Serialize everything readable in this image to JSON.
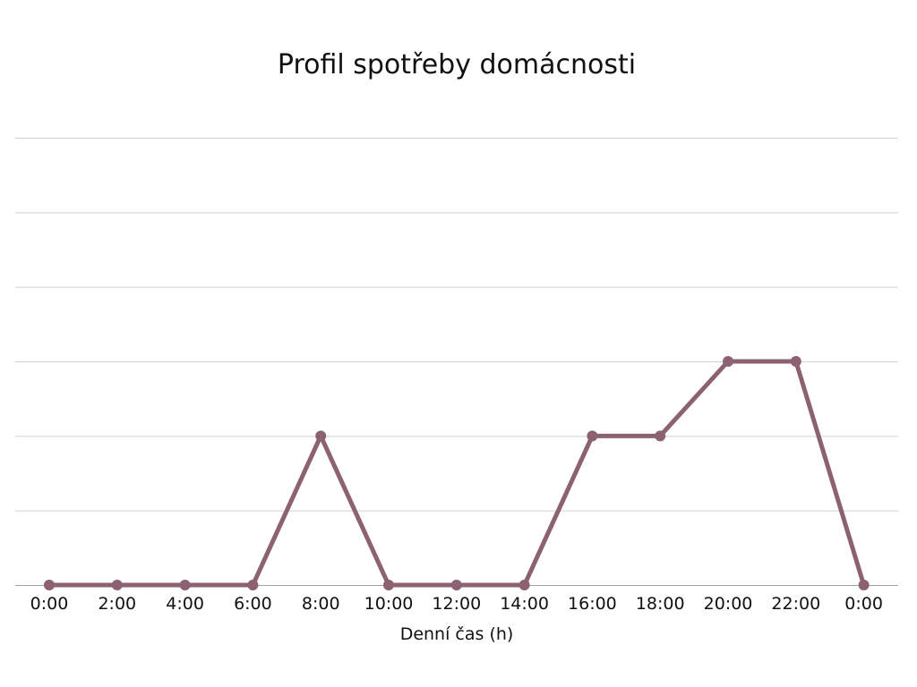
{
  "chart_data": {
    "type": "line",
    "title": "Profil spotřeby domácnosti",
    "xlabel": "Denní čas (h)",
    "ylabel": "",
    "categories": [
      "0:00",
      "2:00",
      "4:00",
      "6:00",
      "8:00",
      "10:00",
      "12:00",
      "14:00",
      "16:00",
      "18:00",
      "20:00",
      "22:00",
      "0:00"
    ],
    "series": [
      {
        "values": [
          0,
          0,
          0,
          0,
          2,
          0,
          0,
          0,
          2,
          2,
          3,
          3,
          0
        ]
      }
    ],
    "ylim": [
      0,
      6
    ],
    "y_gridlines": [
      1,
      2,
      3,
      4,
      5,
      6
    ],
    "grid": true,
    "colors": {
      "series": "#8c6272",
      "grid": "#d0d0d0",
      "axis": "#a0a0a0",
      "text": "#111111"
    }
  }
}
